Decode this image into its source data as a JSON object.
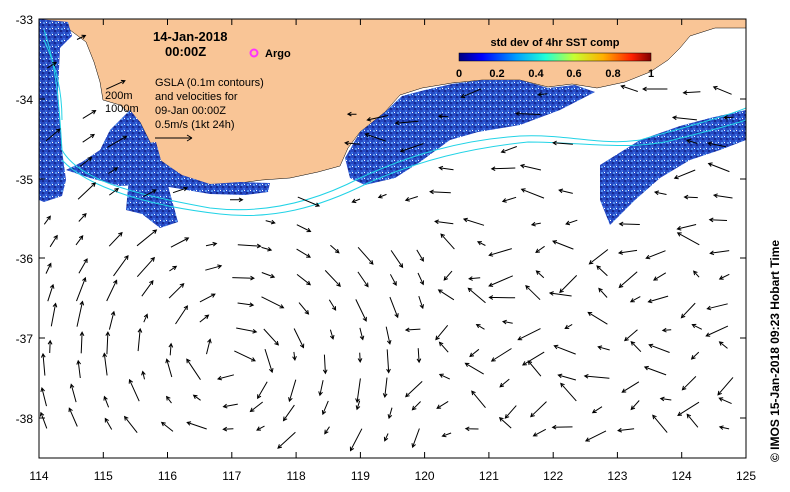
{
  "map": {
    "date": "14-Jan-2018",
    "time": "00:00Z",
    "argo_label": "Argo",
    "gsla_lines": [
      "GSLA (0.1m contours)",
      "and velocities for",
      "09-Jan 00:00Z",
      "0.5m/s (1kt 24h)"
    ],
    "isobath_labels": [
      "200m",
      "1000m"
    ],
    "colorbar": {
      "title": "std dev of 4hr SST comp",
      "ticks": [
        "0",
        "0.2",
        "0.4",
        "0.6",
        "0.8",
        "1"
      ]
    },
    "x_ticks": [
      "114",
      "115",
      "116",
      "117",
      "118",
      "119",
      "120",
      "121",
      "122",
      "123",
      "124",
      "125"
    ],
    "y_ticks": [
      "-33",
      "-34",
      "-35",
      "-36",
      "-37",
      "-38"
    ],
    "credit": "© IMOS 15-Jan-2018 09:23 Hobart Time",
    "colors": {
      "land": "#f9c596",
      "sst_patch": "#1b3fbf",
      "isobath": "#22d3e6",
      "argo": "#ff33ff"
    }
  }
}
